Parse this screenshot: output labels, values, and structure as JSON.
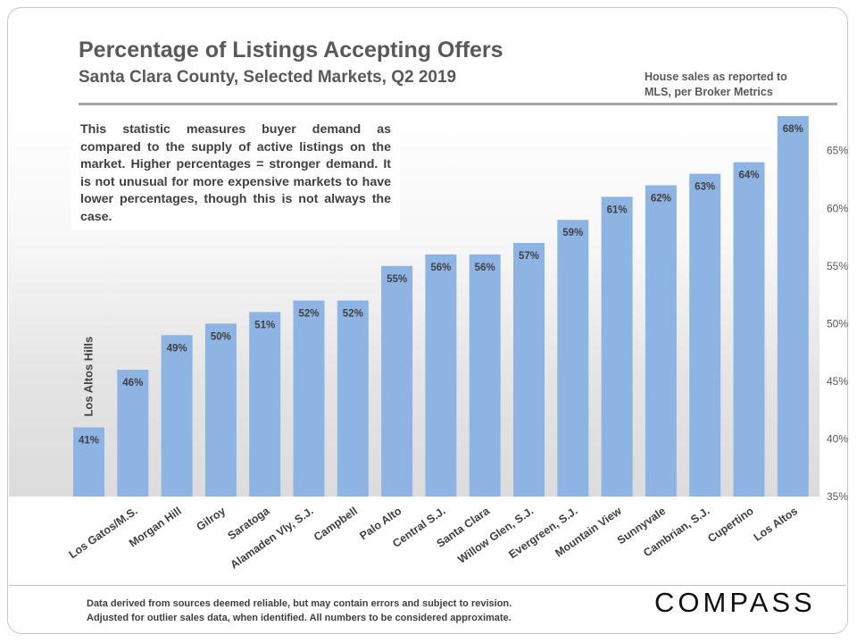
{
  "header": {
    "title": "Percentage of Listings Accepting Offers",
    "subtitle": "Santa Clara County, Selected Markets, Q2 2019",
    "source_line1": "House sales as reported to",
    "source_line2": "MLS, per Broker Metrics"
  },
  "info_box": {
    "text": "This statistic measures buyer demand as compared to the supply of active listings on the market. Higher percentages = stronger demand. It is not unusual for more expensive markets to have lower percentages, though this is not always the case."
  },
  "footer": {
    "line1": "Data derived from sources deemed reliable, but may contain errors and subject to revision.",
    "line2": "Adjusted for outlier sales data, when identified. All numbers to be considered approximate.",
    "brand": "COMPASS"
  },
  "chart_data": {
    "type": "bar",
    "categories": [
      "Los Altos Hills",
      "Los Gatos/M.S.",
      "Morgan Hill",
      "Gilroy",
      "Saratoga",
      "Alamaden Vly, S.J.",
      "Campbell",
      "Palo Alto",
      "Central S.J.",
      "Santa Clara",
      "Willow Glen, S.J.",
      "Evergreen, S.J.",
      "Mountain View",
      "Sunnyvale",
      "Cambrian, S.J.",
      "Cupertino",
      "Los Altos"
    ],
    "values": [
      41,
      46,
      49,
      50,
      51,
      52,
      52,
      55,
      56,
      56,
      57,
      59,
      61,
      62,
      63,
      64,
      68
    ],
    "data_labels": [
      "41%",
      "46%",
      "49%",
      "50%",
      "51%",
      "52%",
      "52%",
      "55%",
      "56%",
      "56%",
      "57%",
      "59%",
      "61%",
      "62%",
      "63%",
      "64%",
      "68%"
    ],
    "ylim": [
      35,
      68
    ],
    "yticks": [
      35,
      40,
      45,
      50,
      55,
      60,
      65
    ],
    "ytick_labels": [
      "35%",
      "40%",
      "45%",
      "50%",
      "55%",
      "60%",
      "65%"
    ],
    "y_axis_side": "right",
    "bar_color": "#8eb4e3",
    "annotation": "Los Altos Hills",
    "grid": false
  }
}
